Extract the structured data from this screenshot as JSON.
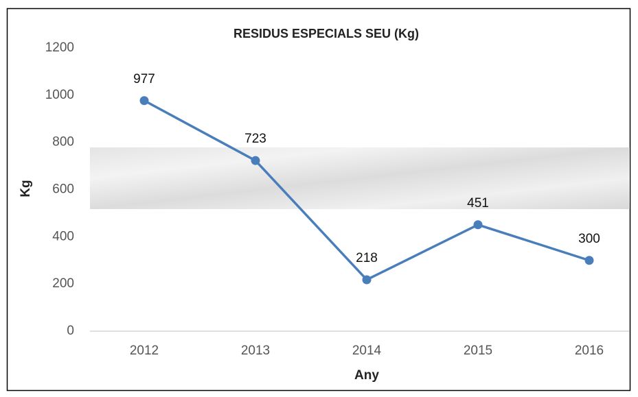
{
  "chart_data": {
    "type": "line",
    "title": "RESIDUS ESPECIALS SEU (Kg)",
    "x_label": "Any",
    "y_label": "Kg",
    "categories": [
      "2012",
      "2013",
      "2014",
      "2015",
      "2016"
    ],
    "series": [
      {
        "name": "Kg",
        "color": "#4a7ebb",
        "values": [
          977,
          723,
          218,
          451,
          300
        ]
      }
    ],
    "ylim": [
      0,
      1200
    ],
    "yticks": [
      0,
      200,
      400,
      600,
      800,
      1000,
      1200
    ],
    "grid": false
  }
}
